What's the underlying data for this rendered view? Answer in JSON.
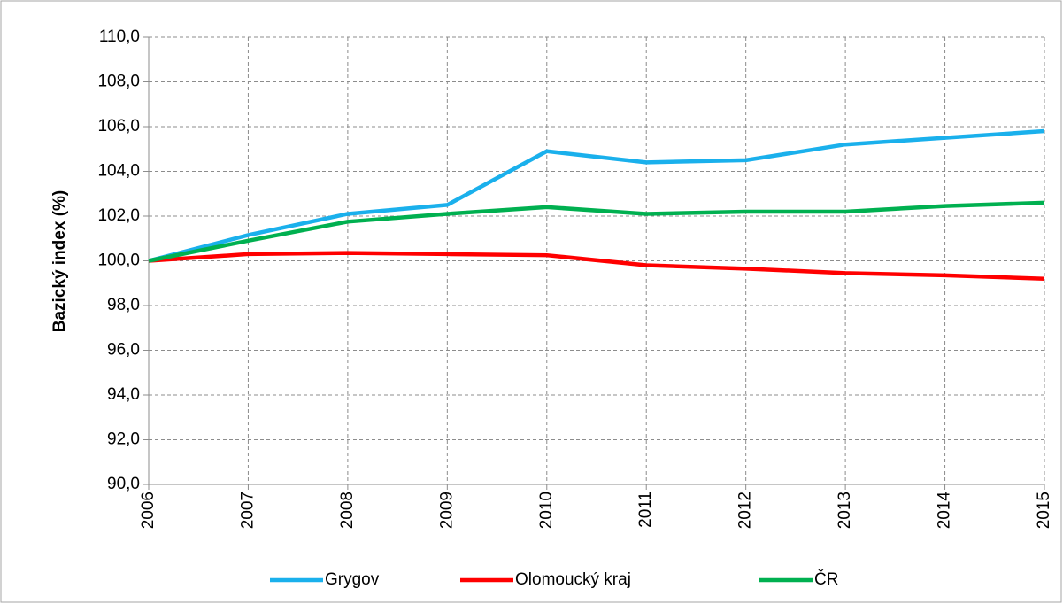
{
  "chart_data": {
    "type": "line",
    "y_label": "Bazický index (%)",
    "x": [
      2006,
      2007,
      2008,
      2009,
      2010,
      2011,
      2012,
      2013,
      2014,
      2015
    ],
    "xlim": [
      2006,
      2015
    ],
    "xticks": [
      2006,
      2007,
      2008,
      2009,
      2010,
      2011,
      2012,
      2013,
      2014,
      2015
    ],
    "ylim": [
      90,
      110
    ],
    "yticks": [
      {
        "value": 90,
        "label": "90,0"
      },
      {
        "value": 92,
        "label": "92,0"
      },
      {
        "value": 94,
        "label": "94,0"
      },
      {
        "value": 96,
        "label": "96,0"
      },
      {
        "value": 98,
        "label": "98,0"
      },
      {
        "value": 100,
        "label": "100,0"
      },
      {
        "value": 102,
        "label": "102,0"
      },
      {
        "value": 104,
        "label": "104,0"
      },
      {
        "value": 106,
        "label": "106,0"
      },
      {
        "value": 108,
        "label": "108,0"
      },
      {
        "value": 110,
        "label": "110,0"
      }
    ],
    "grid": true,
    "legend": "bottom",
    "series": [
      {
        "name": "Grygov",
        "color": "#1ab0ec",
        "values": [
          100,
          101.15,
          102.1,
          102.5,
          104.9,
          104.4,
          104.5,
          105.2,
          105.5,
          105.8
        ]
      },
      {
        "name": "Olomoucký kraj",
        "color": "#ff0000",
        "values": [
          100,
          100.3,
          100.35,
          100.3,
          100.25,
          99.8,
          99.65,
          99.45,
          99.35,
          99.2
        ]
      },
      {
        "name": "ČR",
        "color": "#00b050",
        "values": [
          100,
          100.9,
          101.75,
          102.1,
          102.4,
          102.1,
          102.2,
          102.2,
          102.45,
          102.6
        ]
      }
    ]
  }
}
